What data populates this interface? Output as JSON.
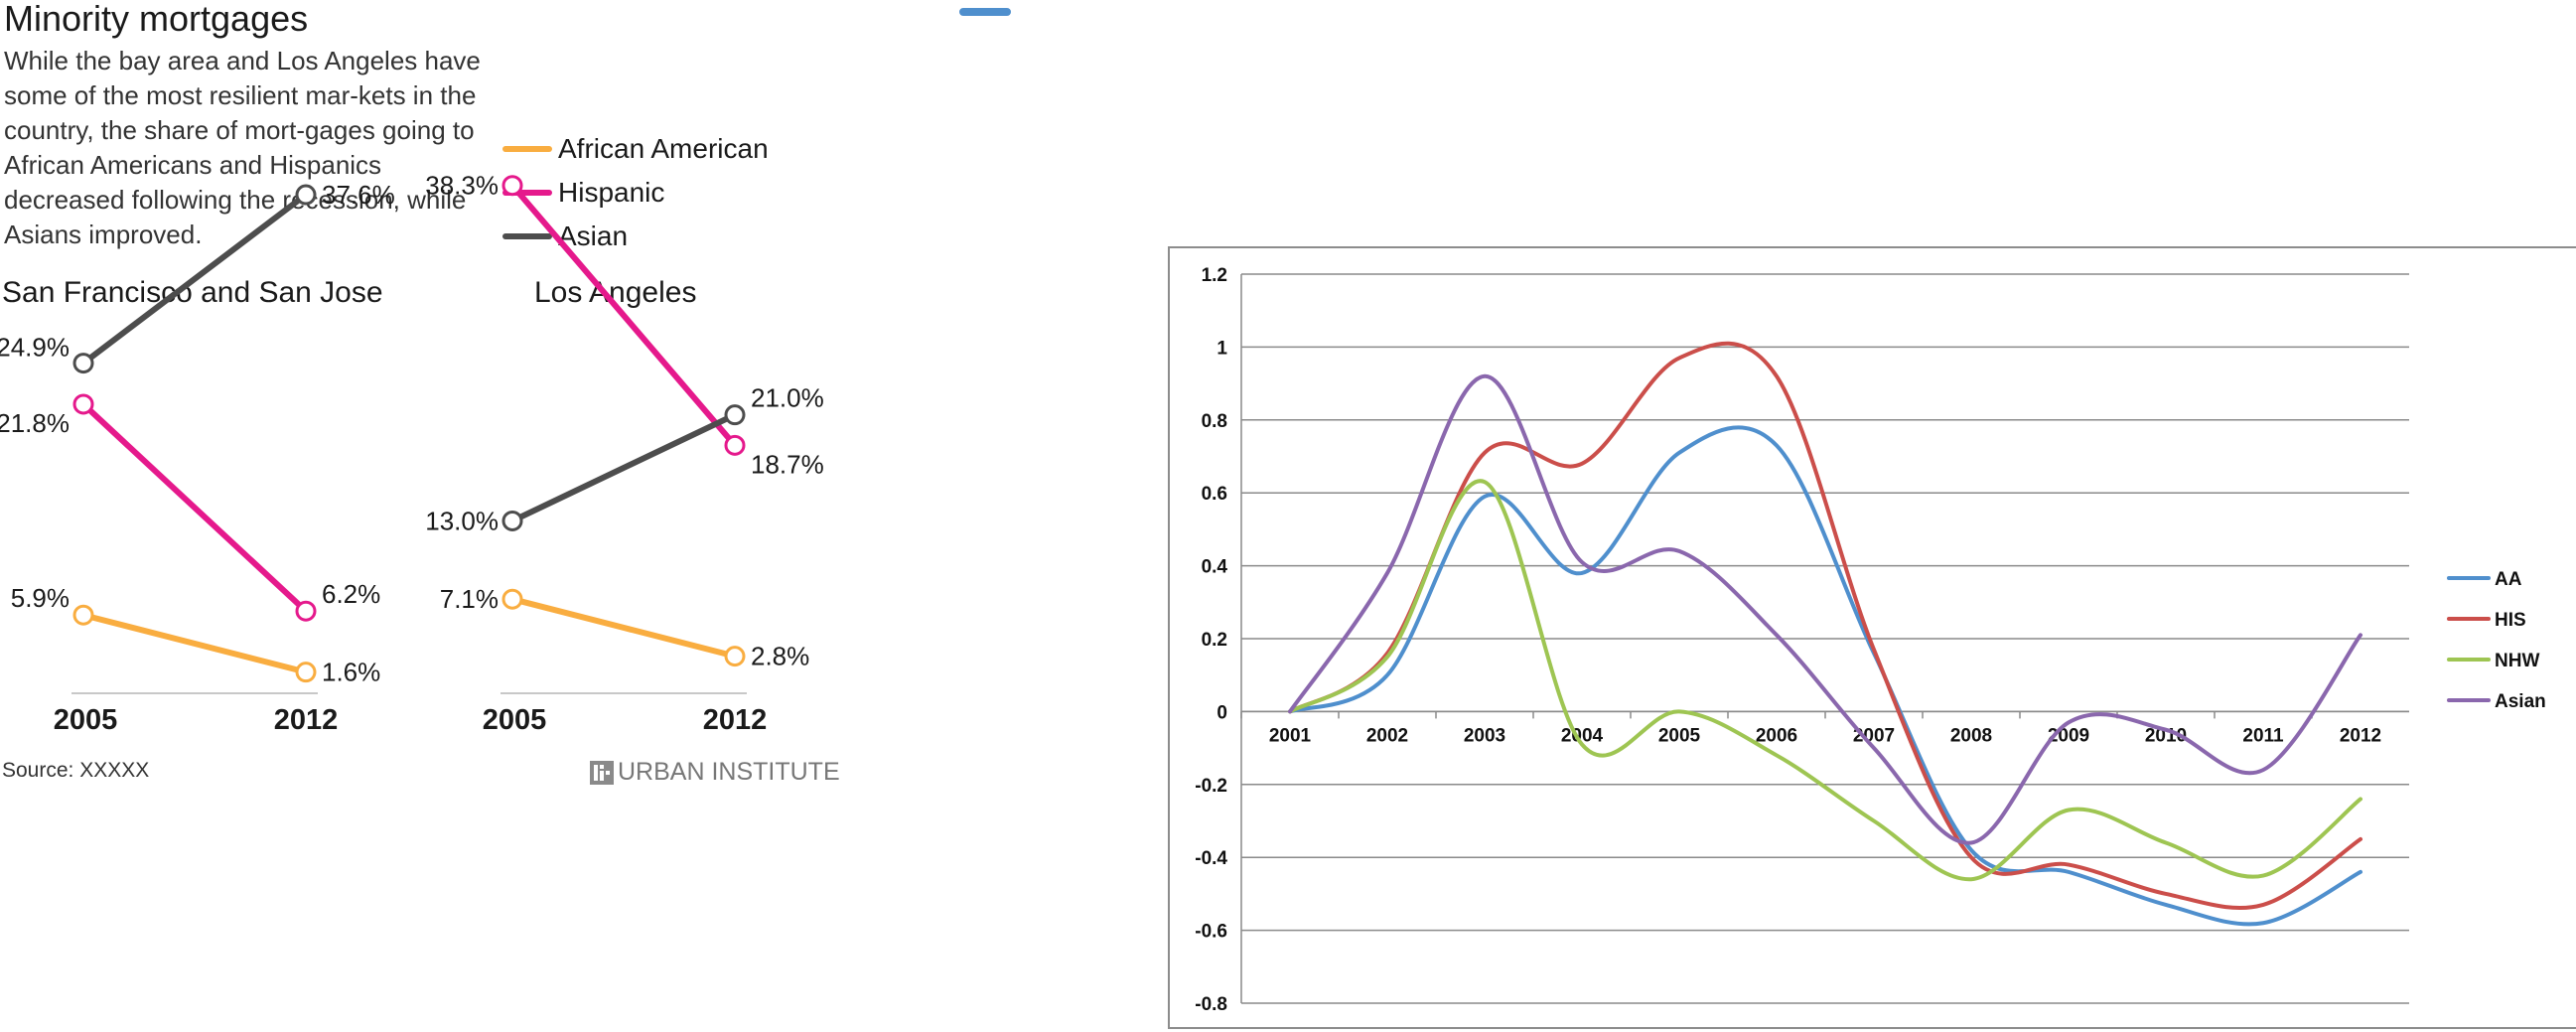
{
  "left_panel": {
    "title": "Minority mortgages",
    "subtitle": "While the bay area and Los Angeles have some of the most resilient mar-kets in the country, the share of mort-gages going to African Americans and Hispanics decreased following the recession, while Asians improved.",
    "source": "Source: XXXXX",
    "brand": "URBAN INSTITUTE",
    "brand_icon": "building-logo-icon"
  },
  "chart_data": [
    {
      "type": "line",
      "subtype": "slope",
      "title": "San Francisco and San Jose",
      "categories": [
        "2005",
        "2012"
      ],
      "legend": "top-right",
      "series": [
        {
          "name": "African American",
          "color": "#f9ad40",
          "values": [
            5.9,
            1.6
          ],
          "labels": [
            "5.9%",
            "1.6%"
          ]
        },
        {
          "name": "Hispanic",
          "color": "#e5198c",
          "values": [
            21.8,
            6.2
          ],
          "labels": [
            "21.8%",
            "6.2%"
          ]
        },
        {
          "name": "Asian",
          "color": "#4d4d4d",
          "values": [
            24.9,
            37.6
          ],
          "labels": [
            "24.9%",
            "37.6%"
          ]
        }
      ]
    },
    {
      "type": "line",
      "subtype": "slope",
      "title": "Los Angeles",
      "categories": [
        "2005",
        "2012"
      ],
      "series": [
        {
          "name": "African American",
          "color": "#f9ad40",
          "values": [
            7.1,
            2.8
          ],
          "labels": [
            "7.1%",
            "2.8%"
          ]
        },
        {
          "name": "Hispanic",
          "color": "#e5198c",
          "values": [
            38.3,
            18.7
          ],
          "labels": [
            "38.3%",
            "18.7%"
          ]
        },
        {
          "name": "Asian",
          "color": "#4d4d4d",
          "values": [
            13.0,
            21.0
          ],
          "labels": [
            "13.0%",
            "21.0%"
          ]
        }
      ]
    },
    {
      "type": "line",
      "smooth": true,
      "title": "",
      "xlabel": "",
      "ylabel": "",
      "categories": [
        "2001",
        "2002",
        "2003",
        "2004",
        "2005",
        "2006",
        "2007",
        "2008",
        "2009",
        "2010",
        "2011",
        "2012"
      ],
      "ylim": [
        -0.8,
        1.2
      ],
      "yticks": [
        1.2,
        1,
        0.8,
        0.6,
        0.4,
        0.2,
        0,
        -0.2,
        -0.4,
        -0.6,
        -0.8
      ],
      "ytick_labels": [
        "1.2",
        "1",
        "0.8",
        "0.6",
        "0.4",
        "0.2",
        "0",
        "-0.2",
        "-0.4",
        "-0.6",
        "-0.8"
      ],
      "grid": true,
      "legend": "right",
      "series": [
        {
          "name": "AA",
          "color": "#4f8fcd",
          "values": [
            0.0,
            0.1,
            0.59,
            0.38,
            0.71,
            0.73,
            0.16,
            -0.38,
            -0.44,
            -0.53,
            -0.58,
            -0.44
          ]
        },
        {
          "name": "HIS",
          "color": "#cb4e4a",
          "values": [
            0.0,
            0.16,
            0.71,
            0.68,
            0.97,
            0.92,
            0.17,
            -0.4,
            -0.42,
            -0.5,
            -0.53,
            -0.35
          ]
        },
        {
          "name": "NHW",
          "color": "#9ec552",
          "values": [
            0.0,
            0.15,
            0.63,
            -0.09,
            0.0,
            -0.12,
            -0.3,
            -0.46,
            -0.27,
            -0.36,
            -0.45,
            -0.24
          ]
        },
        {
          "name": "Asian",
          "color": "#8a67ad",
          "values": [
            0.0,
            0.38,
            0.92,
            0.41,
            0.44,
            0.21,
            -0.1,
            -0.36,
            -0.03,
            -0.05,
            -0.16,
            0.21
          ]
        }
      ]
    }
  ]
}
